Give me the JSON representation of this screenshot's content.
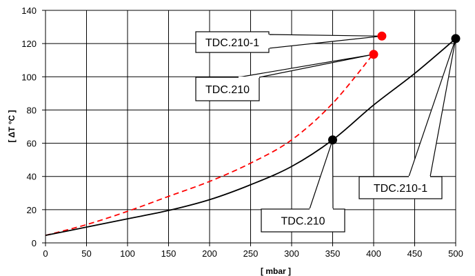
{
  "chart_data": {
    "type": "line",
    "xlabel": "[ mbar ]",
    "ylabel": "[ ΔT °C ]",
    "xlim": [
      0,
      500
    ],
    "ylim": [
      0,
      140
    ],
    "x_ticks": [
      0,
      50,
      100,
      150,
      200,
      250,
      300,
      350,
      400,
      450,
      500
    ],
    "y_ticks": [
      0,
      20,
      40,
      60,
      80,
      100,
      120,
      140
    ],
    "grid": true,
    "series": [
      {
        "color": "#ff0000",
        "style": "dashed",
        "x": [
          0,
          50,
          100,
          150,
          200,
          250,
          300,
          350,
          400
        ],
        "y": [
          4.5,
          11,
          19,
          28,
          37,
          48,
          62,
          84,
          114
        ]
      },
      {
        "color": "#000000",
        "style": "solid",
        "x": [
          0,
          50,
          100,
          150,
          200,
          250,
          300,
          350,
          400,
          450,
          500
        ],
        "y": [
          4.5,
          9.5,
          14.5,
          19.5,
          26,
          35,
          46,
          62,
          83,
          102,
          123
        ]
      }
    ],
    "markers": [
      {
        "x": 410,
        "y": 124.5,
        "color": "#ff0000"
      },
      {
        "x": 400,
        "y": 113.5,
        "color": "#ff0000"
      },
      {
        "x": 350,
        "y": 62,
        "color": "#000000"
      },
      {
        "x": 500,
        "y": 123,
        "color": "#000000"
      }
    ],
    "callouts": [
      {
        "text": "TDC.210-1",
        "marker": 0
      },
      {
        "text": "TDC.210",
        "marker": 1
      },
      {
        "text": "TDC.210",
        "marker": 2
      },
      {
        "text": "TDC.210-1",
        "marker": 3
      }
    ]
  }
}
